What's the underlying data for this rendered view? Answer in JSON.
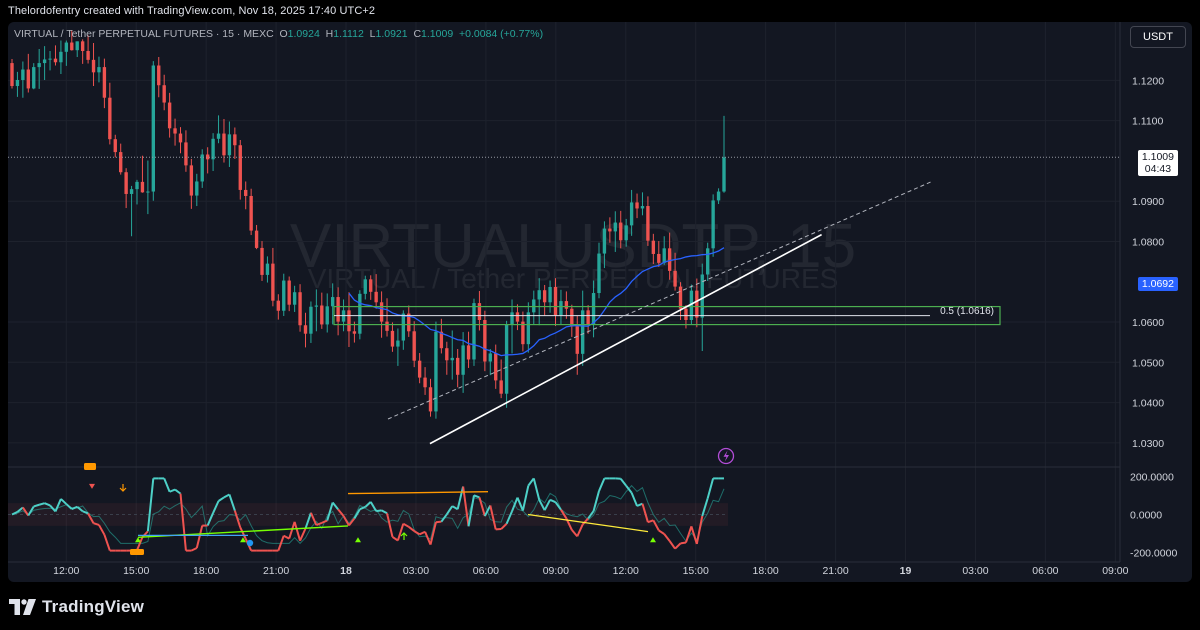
{
  "header": {
    "caption": "Thelordofentry created with TradingView.com, Nov 18, 2025 17:40 UTC+2"
  },
  "legend": {
    "symbol": "VIRTUAL / Tether PERPETUAL FUTURES · 15 · MEXC",
    "o_label": "O",
    "o_value": "1.0924",
    "h_label": "H",
    "h_value": "1.1112",
    "l_label": "L",
    "l_value": "1.0921",
    "c_label": "C",
    "c_value": "1.1009",
    "change": "+0.0084 (+0.77%)"
  },
  "currency_button": "USDT",
  "watermark": {
    "big": "VIRTUALUSDTP, 15",
    "small": "VIRTUAL / Tether PERPETUAL FUTURES"
  },
  "last_price_tag": {
    "price": "1.1009",
    "countdown": "04:43"
  },
  "ma_price_tag": "1.0692",
  "fib_label": "0.5 (1.0616)",
  "footer": {
    "brand": "TradingView"
  },
  "colors": {
    "up": "#26a69a",
    "down": "#ef5350",
    "accent": "#2962ff",
    "fib_box": "#4caf50"
  },
  "chart_data": {
    "type": "candlestick",
    "symbol": "VIRTUALUSDTP",
    "interval": "15",
    "exchange": "MEXC",
    "price_axis": {
      "ticks": [
        "1.1200",
        "1.1100",
        "1.0900",
        "1.0800",
        "1.0600",
        "1.0500",
        "1.0400",
        "1.0300"
      ],
      "range": [
        1.024,
        1.1345
      ]
    },
    "time_axis": {
      "ticks": [
        "12:00",
        "15:00",
        "18:00",
        "21:00",
        "18",
        "03:00",
        "06:00",
        "09:00",
        "12:00",
        "15:00",
        "18:00",
        "21:00",
        "19",
        "03:00",
        "06:00",
        "09:00"
      ],
      "range_hours": [
        9.5,
        57.2
      ]
    },
    "candles_ohlc": [
      [
        1.1243,
        1.1253,
        1.118,
        1.1186
      ],
      [
        1.1186,
        1.1221,
        1.1159,
        1.1201
      ],
      [
        1.1201,
        1.1247,
        1.1157,
        1.1227
      ],
      [
        1.1227,
        1.1266,
        1.117,
        1.118
      ],
      [
        1.118,
        1.1243,
        1.1178,
        1.1233
      ],
      [
        1.1233,
        1.1278,
        1.1179,
        1.1243
      ],
      [
        1.1243,
        1.1285,
        1.1201,
        1.1252
      ],
      [
        1.1252,
        1.1273,
        1.1225,
        1.1254
      ],
      [
        1.1254,
        1.1287,
        1.1237,
        1.1245
      ],
      [
        1.1245,
        1.1299,
        1.1216,
        1.1271
      ],
      [
        1.1271,
        1.1299,
        1.1236,
        1.1294
      ],
      [
        1.1294,
        1.1324,
        1.1274,
        1.1275
      ],
      [
        1.1275,
        1.1297,
        1.1258,
        1.1297
      ],
      [
        1.1297,
        1.1302,
        1.1241,
        1.1273
      ],
      [
        1.1273,
        1.1312,
        1.1242,
        1.1251
      ],
      [
        1.1251,
        1.1293,
        1.1186,
        1.122
      ],
      [
        1.122,
        1.1259,
        1.1195,
        1.1233
      ],
      [
        1.1233,
        1.1254,
        1.1131,
        1.1157
      ],
      [
        1.1157,
        1.1194,
        1.1041,
        1.1054
      ],
      [
        1.1054,
        1.1065,
        1.1009,
        1.1022
      ],
      [
        1.1022,
        1.1043,
        1.0966,
        1.0972
      ],
      [
        1.0972,
        1.0982,
        1.0883,
        1.0918
      ],
      [
        1.0918,
        1.0938,
        1.0813,
        1.093
      ],
      [
        1.093,
        1.0953,
        1.0892,
        1.0948
      ],
      [
        1.0948,
        1.1013,
        1.0921,
        1.0922
      ],
      [
        1.0922,
        1.1001,
        1.0868,
        1.0924
      ],
      [
        1.0924,
        1.1248,
        1.0901,
        1.1237
      ],
      [
        1.1237,
        1.1258,
        1.1158,
        1.1188
      ],
      [
        1.1188,
        1.1214,
        1.1126,
        1.1145
      ],
      [
        1.1145,
        1.1169,
        1.1058,
        1.1081
      ],
      [
        1.1081,
        1.1105,
        1.1038,
        1.1068
      ],
      [
        1.1068,
        1.1084,
        1.1019,
        1.1046
      ],
      [
        1.1046,
        1.1076,
        1.0973,
        1.0989
      ],
      [
        1.0989,
        1.1005,
        1.0881,
        1.0914
      ],
      [
        1.0914,
        1.0968,
        1.0888,
        1.0949
      ],
      [
        1.0949,
        1.1029,
        1.0933,
        1.1016
      ],
      [
        1.1016,
        1.1034,
        1.0969,
        1.1004
      ],
      [
        1.1004,
        1.1069,
        1.0975,
        1.1055
      ],
      [
        1.1055,
        1.1113,
        1.1044,
        1.1068
      ],
      [
        1.1068,
        1.1104,
        1.0996,
        1.1014
      ],
      [
        1.1014,
        1.1098,
        1.0985,
        1.1066
      ],
      [
        1.1066,
        1.1083,
        1.1005,
        1.1039
      ],
      [
        1.1039,
        1.1052,
        1.0904,
        1.0928
      ],
      [
        1.0928,
        1.0949,
        1.088,
        1.0913
      ],
      [
        1.0913,
        1.0931,
        1.0816,
        1.0827
      ],
      [
        1.0827,
        1.0841,
        1.0781,
        1.0784
      ],
      [
        1.0784,
        1.0801,
        1.0702,
        1.0717
      ],
      [
        1.0717,
        1.0763,
        1.0698,
        1.0745
      ],
      [
        1.0745,
        1.0784,
        1.0639,
        1.0653
      ],
      [
        1.0653,
        1.0669,
        1.0606,
        1.0628
      ],
      [
        1.0628,
        1.072,
        1.0615,
        1.0703
      ],
      [
        1.0703,
        1.0713,
        1.0627,
        1.0643
      ],
      [
        1.0643,
        1.069,
        1.0625,
        1.0674
      ],
      [
        1.0674,
        1.0694,
        1.0576,
        1.0592
      ],
      [
        1.0592,
        1.0623,
        1.0537,
        1.0571
      ],
      [
        1.0571,
        1.0651,
        1.0548,
        1.0638
      ],
      [
        1.0638,
        1.0681,
        1.0577,
        1.0641
      ],
      [
        1.0641,
        1.0673,
        1.0583,
        1.0594
      ],
      [
        1.0594,
        1.0671,
        1.0574,
        1.0639
      ],
      [
        1.0639,
        1.0696,
        1.0594,
        1.0662
      ],
      [
        1.0662,
        1.0686,
        1.0567,
        1.0601
      ],
      [
        1.0601,
        1.0656,
        1.0577,
        1.0629
      ],
      [
        1.0629,
        1.0674,
        1.0538,
        1.0577
      ],
      [
        1.0577,
        1.0601,
        1.0549,
        1.0571
      ],
      [
        1.0571,
        1.0679,
        1.0557,
        1.067
      ],
      [
        1.067,
        1.0715,
        1.0656,
        1.0706
      ],
      [
        1.0706,
        1.0716,
        1.0655,
        1.0675
      ],
      [
        1.0675,
        1.0719,
        1.0633,
        1.0649
      ],
      [
        1.0649,
        1.0676,
        1.0561,
        1.0601
      ],
      [
        1.0601,
        1.0659,
        1.0564,
        1.0578
      ],
      [
        1.0578,
        1.0599,
        1.0526,
        1.0539
      ],
      [
        1.0539,
        1.0584,
        1.0491,
        1.0554
      ],
      [
        1.0554,
        1.0629,
        1.0531,
        1.0621
      ],
      [
        1.0621,
        1.0641,
        1.0563,
        1.0577
      ],
      [
        1.0577,
        1.0602,
        1.0488,
        1.0504
      ],
      [
        1.0504,
        1.0523,
        1.0448,
        1.0462
      ],
      [
        1.0462,
        1.0488,
        1.0419,
        1.0438
      ],
      [
        1.0438,
        1.0459,
        1.0365,
        1.0378
      ],
      [
        1.0378,
        1.0601,
        1.036,
        1.0576
      ],
      [
        1.0576,
        1.0608,
        1.0522,
        1.0535
      ],
      [
        1.0535,
        1.0551,
        1.0469,
        1.0505
      ],
      [
        1.0505,
        1.0579,
        1.0457,
        1.0511
      ],
      [
        1.0511,
        1.0533,
        1.0438,
        1.0469
      ],
      [
        1.0469,
        1.0575,
        1.0424,
        1.0542
      ],
      [
        1.0542,
        1.0576,
        1.0486,
        1.0507
      ],
      [
        1.0507,
        1.0658,
        1.0491,
        1.0647
      ],
      [
        1.0647,
        1.0677,
        1.0579,
        1.0605
      ],
      [
        1.0605,
        1.0628,
        1.0478,
        1.0502
      ],
      [
        1.0502,
        1.0533,
        1.0468,
        1.0522
      ],
      [
        1.0522,
        1.0544,
        1.0434,
        1.0455
      ],
      [
        1.0455,
        1.0507,
        1.0411,
        1.0422
      ],
      [
        1.0422,
        1.0603,
        1.0387,
        1.0593
      ],
      [
        1.0593,
        1.0656,
        1.0522,
        1.0624
      ],
      [
        1.0624,
        1.0644,
        1.058,
        1.0601
      ],
      [
        1.0601,
        1.0626,
        1.0527,
        1.0545
      ],
      [
        1.0545,
        1.0649,
        1.0524,
        1.0624
      ],
      [
        1.0624,
        1.0678,
        1.0594,
        1.0656
      ],
      [
        1.0656,
        1.0709,
        1.0592,
        1.0679
      ],
      [
        1.0679,
        1.0692,
        1.0615,
        1.0649
      ],
      [
        1.0649,
        1.0703,
        1.0623,
        1.0687
      ],
      [
        1.0687,
        1.0709,
        1.059,
        1.0617
      ],
      [
        1.0617,
        1.068,
        1.0595,
        1.0652
      ],
      [
        1.0652,
        1.0676,
        1.0608,
        1.0633
      ],
      [
        1.0633,
        1.0643,
        1.0563,
        1.0589
      ],
      [
        1.0589,
        1.0616,
        1.0469,
        1.0521
      ],
      [
        1.0521,
        1.0678,
        1.0491,
        1.0629
      ],
      [
        1.0629,
        1.0642,
        1.0571,
        1.0594
      ],
      [
        1.0594,
        1.0703,
        1.0562,
        1.0672
      ],
      [
        1.0672,
        1.0797,
        1.0659,
        1.077
      ],
      [
        1.077,
        1.085,
        1.0734,
        1.0832
      ],
      [
        1.0832,
        1.086,
        1.0797,
        1.0825
      ],
      [
        1.0825,
        1.0875,
        1.0774,
        1.0847
      ],
      [
        1.0847,
        1.0876,
        1.0783,
        1.0803
      ],
      [
        1.0803,
        1.0856,
        1.0787,
        1.084
      ],
      [
        1.084,
        1.0928,
        1.0814,
        1.0897
      ],
      [
        1.0897,
        1.0919,
        1.0858,
        1.0882
      ],
      [
        1.0882,
        1.0922,
        1.0865,
        1.0888
      ],
      [
        1.0888,
        1.0912,
        1.0789,
        1.0802
      ],
      [
        1.0802,
        1.0819,
        1.0744,
        1.0769
      ],
      [
        1.0769,
        1.0801,
        1.0737,
        1.0747
      ],
      [
        1.0747,
        1.0813,
        1.0742,
        1.0783
      ],
      [
        1.0783,
        1.0822,
        1.0705,
        1.0727
      ],
      [
        1.0727,
        1.0772,
        1.0678,
        1.0688
      ],
      [
        1.0688,
        1.0699,
        1.0605,
        1.0633
      ],
      [
        1.0633,
        1.0642,
        1.0584,
        1.0605
      ],
      [
        1.0605,
        1.0693,
        1.0593,
        1.0678
      ],
      [
        1.0678,
        1.0708,
        1.0587,
        1.0611
      ],
      [
        1.0611,
        1.0745,
        1.0528,
        1.0718
      ],
      [
        1.0718,
        1.0797,
        1.0702,
        1.0783
      ],
      [
        1.0783,
        1.0917,
        1.0762,
        1.0902
      ],
      [
        1.0902,
        1.0932,
        1.0893,
        1.0924
      ],
      [
        1.0924,
        1.1112,
        1.0921,
        1.1009
      ]
    ],
    "ma_price": 1.0692,
    "last_close": 1.1009,
    "fib_level": {
      "ratio": 0.5,
      "price": 1.0616
    },
    "trendline": {
      "from": [
        27.6,
        1.0298
      ],
      "to": [
        44.4,
        1.0817
      ]
    },
    "oscillator": {
      "ticks": [
        "200.0000",
        "0.0000",
        "-200.0000"
      ],
      "range": [
        -250,
        250
      ]
    }
  }
}
